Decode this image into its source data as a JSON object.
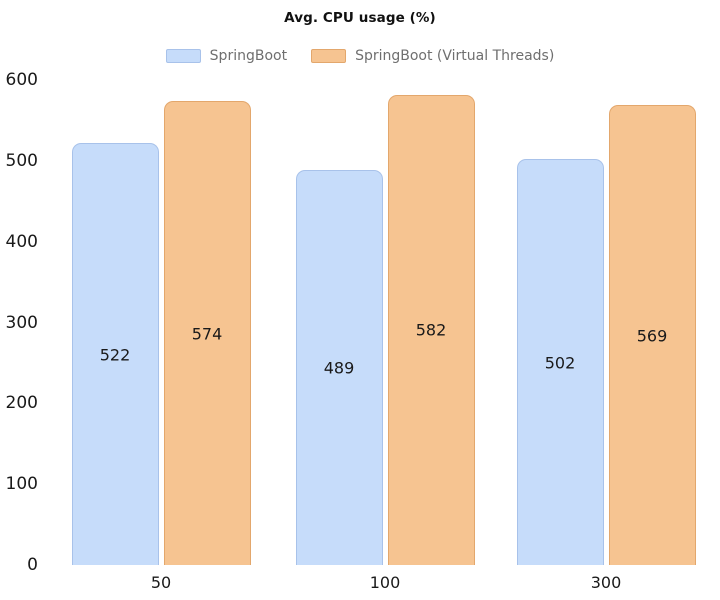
{
  "title": "Avg. CPU usage (%)",
  "chart_data": {
    "type": "bar",
    "title": "Avg. CPU usage (%)",
    "categories": [
      "50",
      "100",
      "300"
    ],
    "series": [
      {
        "name": "SpringBoot",
        "values": [
          522,
          489,
          502
        ],
        "fill_color": "#c6dcfa",
        "border_color": "#a8c2ea"
      },
      {
        "name": "SpringBoot (Virtual Threads)",
        "values": [
          574,
          582,
          569
        ],
        "fill_color": "#f6c491",
        "border_color": "#e3a76c"
      }
    ],
    "ylim": [
      0,
      600
    ],
    "yticks": [
      0,
      100,
      200,
      300,
      400,
      500,
      600
    ],
    "grid": false,
    "legend_position": "top",
    "bar_value_labels_shown": true
  }
}
